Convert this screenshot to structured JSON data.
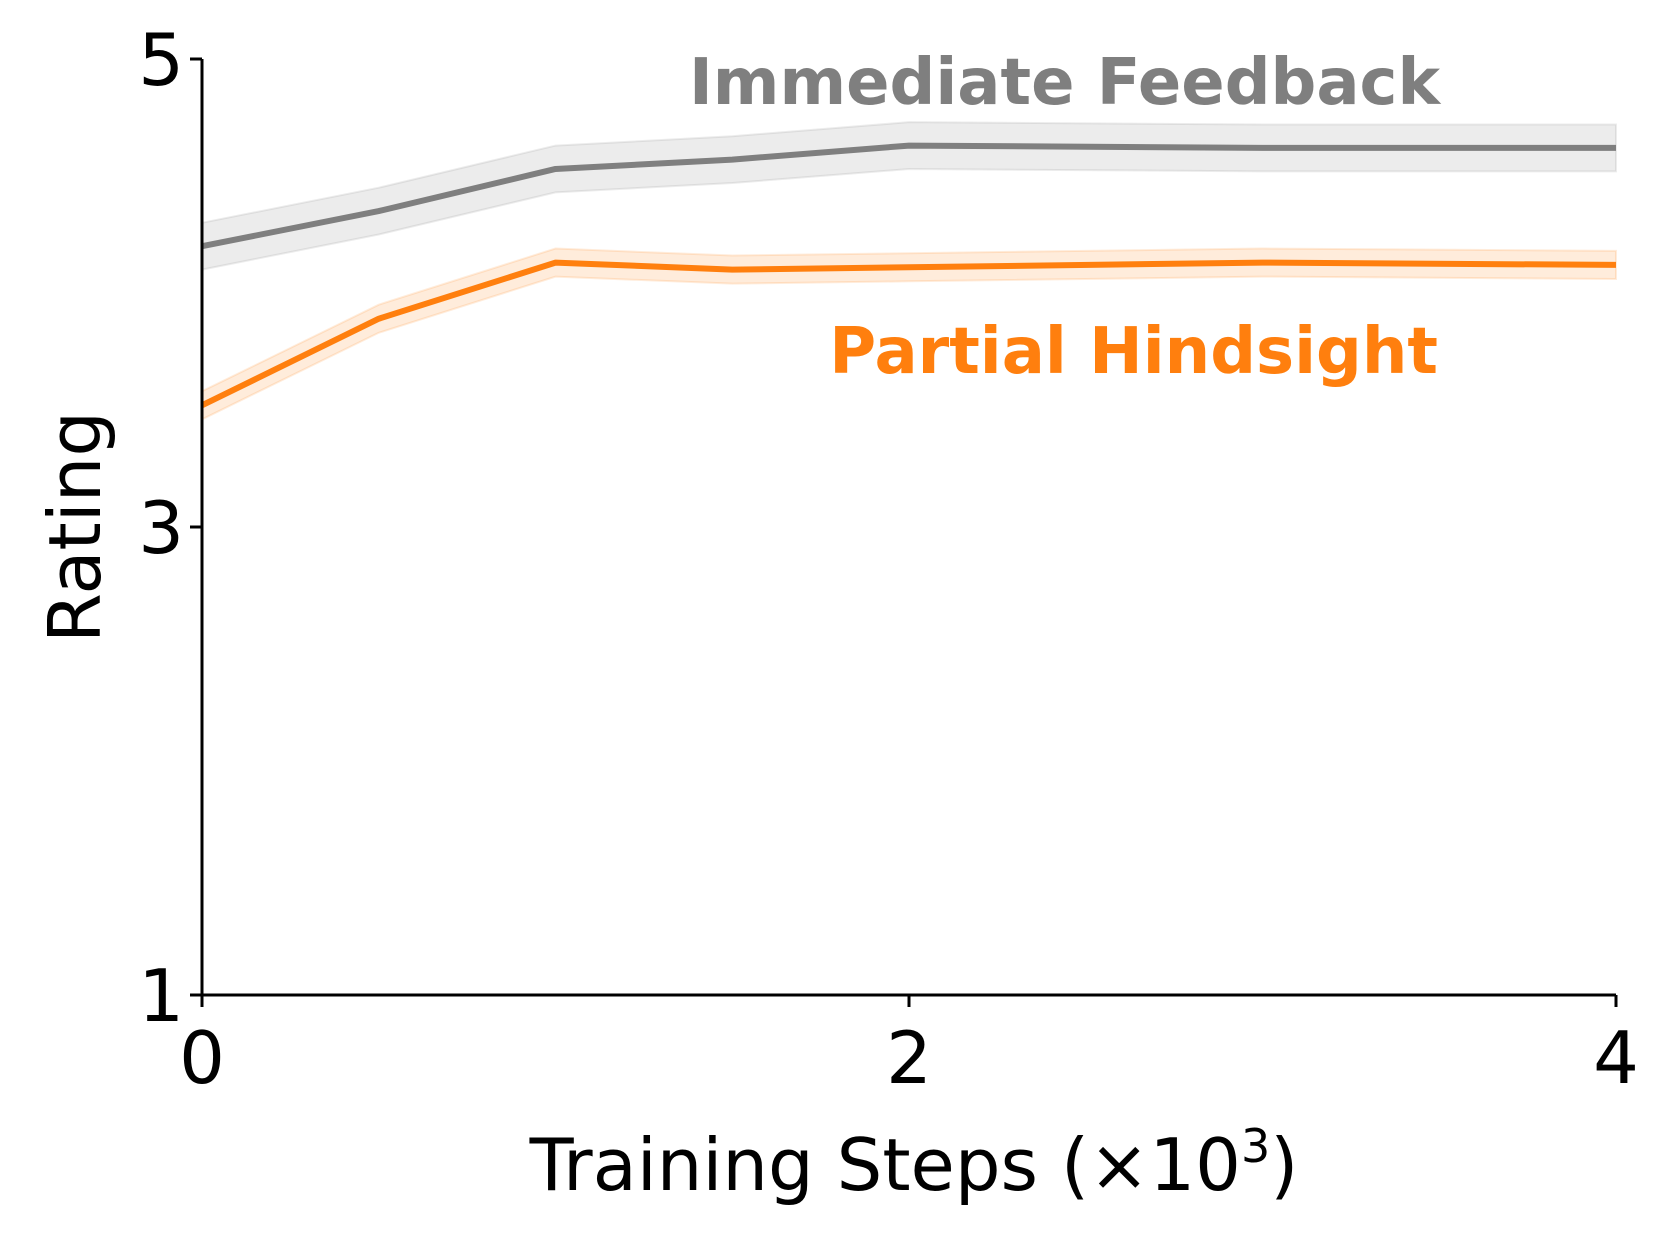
{
  "chart_data": {
    "type": "line",
    "title": "",
    "xlabel": "Training Steps (×10",
    "xlabel_exponent": "3",
    "xlabel_suffix": ")",
    "ylabel": "Rating",
    "xlim": [
      0,
      4
    ],
    "ylim": [
      1,
      5
    ],
    "xticks": [
      0,
      2,
      4
    ],
    "yticks": [
      1,
      3,
      5
    ],
    "xtick_labels": [
      "0",
      "2",
      "4"
    ],
    "ytick_labels": [
      "1",
      "3",
      "5"
    ],
    "grid": false,
    "legend": "direct labels on plot",
    "series": [
      {
        "name": "Immediate Feedback",
        "color": "#7f7f7f",
        "x": [
          0,
          0.5,
          1.0,
          1.5,
          2.0,
          3.0,
          4.0
        ],
        "y": [
          4.2,
          4.35,
          4.53,
          4.57,
          4.63,
          4.62,
          4.62
        ],
        "band": 0.1
      },
      {
        "name": "Partial Hindsight",
        "color": "#ff7f0e",
        "x": [
          0,
          0.5,
          1.0,
          1.5,
          2.0,
          3.0,
          4.0
        ],
        "y": [
          3.52,
          3.89,
          4.13,
          4.1,
          4.11,
          4.13,
          4.12
        ],
        "band": 0.06
      }
    ]
  }
}
